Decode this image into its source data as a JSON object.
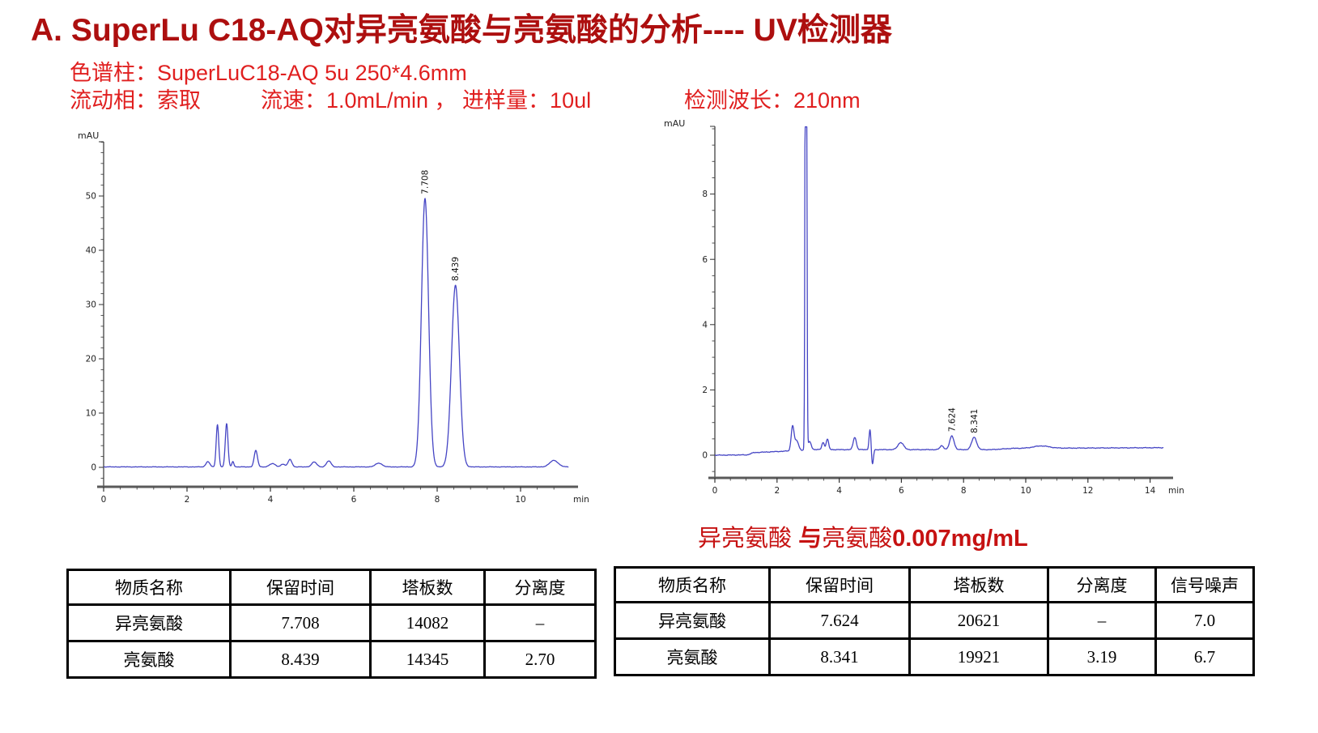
{
  "header": {
    "title": "A. SuperLu C18-AQ对异亮氨酸与亮氨酸的分析---- UV检测器",
    "conditions_line1": "色谱柱：SuperLuC18-AQ 5u 250*4.6mm",
    "conditions_line2": {
      "mobile_phase": "流动相：索取",
      "flow_injection": "流速：1.0mL/min ， 进样量：10ul",
      "wavelength": "检测波长：210nm"
    }
  },
  "annotation": {
    "part1": "异亮氨酸 ",
    "part2": "与",
    "part3": "亮氨酸",
    "part4": "0.007mg/mL"
  },
  "colors": {
    "title_red": "#ad0f0f",
    "conditions_red": "#e01f1f",
    "annotation_red": "#c61212",
    "trace_blue": "#4545c4",
    "axis_gray": "#5a5a5a",
    "tick_text": "#222222"
  },
  "chart_data": [
    {
      "type": "line",
      "title": "",
      "xlabel": "min",
      "ylabel": "mAU",
      "xlim": [
        0,
        11.15
      ],
      "ylim": [
        -3.6,
        60
      ],
      "x_major_ticks": [
        0,
        2,
        4,
        6,
        8,
        10
      ],
      "x_minor_step": 0.4,
      "y_major_ticks": [
        0,
        10,
        20,
        30,
        40,
        50
      ],
      "y_minor_step": 2,
      "grid": false,
      "legend": "none",
      "peaks": [
        {
          "t": 2.5,
          "h": 1.0,
          "w": 0.045
        },
        {
          "t": 2.73,
          "h": 7.8,
          "w": 0.03
        },
        {
          "t": 2.95,
          "h": 8.0,
          "w": 0.032
        },
        {
          "t": 3.1,
          "h": 1.0,
          "w": 0.025
        },
        {
          "t": 3.65,
          "h": 3.0,
          "w": 0.04
        },
        {
          "t": 4.05,
          "h": 0.6,
          "w": 0.07
        },
        {
          "t": 4.3,
          "h": 0.5,
          "w": 0.05
        },
        {
          "t": 4.47,
          "h": 1.4,
          "w": 0.045
        },
        {
          "t": 5.05,
          "h": 0.9,
          "w": 0.06
        },
        {
          "t": 5.4,
          "h": 1.1,
          "w": 0.055
        },
        {
          "t": 6.6,
          "h": 0.7,
          "w": 0.08
        },
        {
          "t": 7.708,
          "h": 49.5,
          "w": 0.085,
          "label": "7.708"
        },
        {
          "t": 8.439,
          "h": 33.5,
          "w": 0.095,
          "label": "8.439"
        },
        {
          "t": 10.8,
          "h": 1.2,
          "w": 0.1
        }
      ],
      "baseline": [
        [
          0,
          0.08
        ],
        [
          11.15,
          0.08
        ]
      ],
      "noise_amp": 0.05
    },
    {
      "type": "line",
      "title": "",
      "xlabel": "min",
      "ylabel": "mAU",
      "xlim": [
        0,
        14.43
      ],
      "ylim": [
        -0.75,
        10.05
      ],
      "x_major_ticks": [
        0,
        2,
        4,
        6,
        8,
        10,
        12,
        14
      ],
      "x_minor_step": 0.5,
      "y_major_ticks": [
        0,
        2,
        4,
        6,
        8
      ],
      "y_minor_step": 0.5,
      "grid": false,
      "legend": "none",
      "peaks": [
        {
          "t": 2.5,
          "h": 0.75,
          "w": 0.045
        },
        {
          "t": 2.63,
          "h": 0.3,
          "w": 0.06
        },
        {
          "t": 2.93,
          "h": 30.0,
          "w": 0.022,
          "clipped": true
        },
        {
          "t": 3.05,
          "h": 0.25,
          "w": 0.05
        },
        {
          "t": 3.48,
          "h": 0.22,
          "w": 0.04
        },
        {
          "t": 3.62,
          "h": 0.32,
          "w": 0.04
        },
        {
          "t": 4.5,
          "h": 0.38,
          "w": 0.05
        },
        {
          "t": 4.99,
          "h": 0.62,
          "w": 0.03
        },
        {
          "t": 5.07,
          "h": -0.45,
          "w": 0.03
        },
        {
          "t": 5.98,
          "h": 0.22,
          "w": 0.09
        },
        {
          "t": 7.3,
          "h": 0.12,
          "w": 0.06
        },
        {
          "t": 7.624,
          "h": 0.42,
          "w": 0.07,
          "label": "7.624"
        },
        {
          "t": 8.341,
          "h": 0.38,
          "w": 0.08,
          "label": "8.341"
        },
        {
          "t": 10.5,
          "h": 0.07,
          "w": 0.25
        }
      ],
      "baseline": [
        [
          0,
          0.0
        ],
        [
          1.05,
          0.01
        ],
        [
          1.25,
          0.08
        ],
        [
          2.2,
          0.12
        ],
        [
          3.1,
          0.17
        ],
        [
          8.9,
          0.17
        ],
        [
          9.6,
          0.21
        ],
        [
          14.43,
          0.23
        ]
      ],
      "noise_amp": 0.013
    }
  ],
  "tables": [
    {
      "headers": [
        "物质名称",
        "保留时间",
        "塔板数",
        "分离度"
      ],
      "rows": [
        [
          "异亮氨酸",
          "7.708",
          "14082",
          "–"
        ],
        [
          "亮氨酸",
          "8.439",
          "14345",
          "2.70"
        ]
      ]
    },
    {
      "headers": [
        "物质名称",
        "保留时间",
        "塔板数",
        "分离度",
        "信号噪声"
      ],
      "rows": [
        [
          "异亮氨酸",
          "7.624",
          "20621",
          "–",
          "7.0"
        ],
        [
          "亮氨酸",
          "8.341",
          "19921",
          "3.19",
          "6.7"
        ]
      ]
    }
  ]
}
